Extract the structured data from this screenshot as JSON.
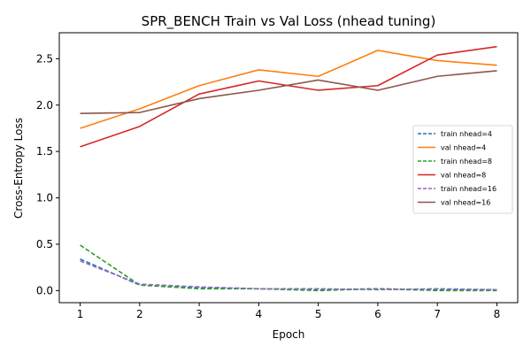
{
  "chart_data": {
    "type": "line",
    "title": "SPR_BENCH Train vs Val Loss (nhead tuning)",
    "xlabel": "Epoch",
    "ylabel": "Cross-Entropy Loss",
    "x": [
      1,
      2,
      3,
      4,
      5,
      6,
      7,
      8
    ],
    "xlim": [
      0.65,
      8.35
    ],
    "ylim": [
      -0.13,
      2.78
    ],
    "xticks": [
      1,
      2,
      3,
      4,
      5,
      6,
      7,
      8
    ],
    "yticks": [
      0.0,
      0.5,
      1.0,
      1.5,
      2.0,
      2.5
    ],
    "grid": false,
    "legend_position": "center-right",
    "series": [
      {
        "name": "train nhead=4",
        "color": "#1f77b4",
        "dash": "dashed",
        "values": [
          0.34,
          0.06,
          0.03,
          0.02,
          0.01,
          0.02,
          0.01,
          0.01
        ]
      },
      {
        "name": "val nhead=4",
        "color": "#ff7f0e",
        "dash": "solid",
        "values": [
          1.75,
          1.96,
          2.21,
          2.38,
          2.31,
          2.59,
          2.48,
          2.43
        ]
      },
      {
        "name": "train nhead=8",
        "color": "#2ca02c",
        "dash": "dashed",
        "values": [
          0.49,
          0.06,
          0.02,
          0.02,
          0.0,
          0.02,
          0.0,
          0.0
        ]
      },
      {
        "name": "val nhead=8",
        "color": "#d62728",
        "dash": "solid",
        "values": [
          1.55,
          1.77,
          2.12,
          2.26,
          2.16,
          2.21,
          2.54,
          2.63
        ]
      },
      {
        "name": "train nhead=16",
        "color": "#9467bd",
        "dash": "dashed",
        "values": [
          0.32,
          0.07,
          0.04,
          0.02,
          0.02,
          0.01,
          0.02,
          0.01
        ]
      },
      {
        "name": "val nhead=16",
        "color": "#8c564b",
        "dash": "solid",
        "values": [
          1.91,
          1.92,
          2.07,
          2.16,
          2.27,
          2.16,
          2.31,
          2.37
        ]
      }
    ]
  }
}
